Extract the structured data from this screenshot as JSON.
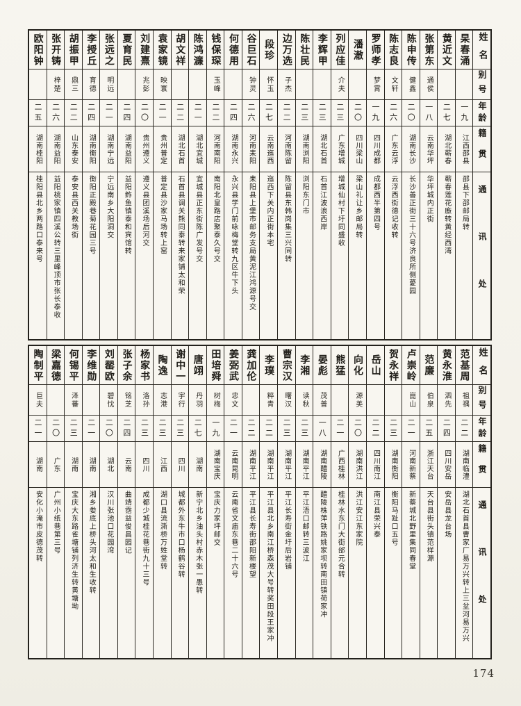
{
  "page": {
    "number": "174"
  },
  "headers": [
    "姓名",
    "别号",
    "年龄",
    "籍贯",
    "通讯处"
  ],
  "tables": {
    "top": {
      "entries": [
        {
          "name": "杲春涌",
          "alias": "",
          "age": "一九",
          "native": "江西邵县",
          "address": "邵县下邵邮局转"
        },
        {
          "name": "黄近文",
          "alias": "",
          "age": "二七",
          "native": "湖北蕲春",
          "address": "蕲春莲花廒转黄经西湾"
        },
        {
          "name": "张第东",
          "alias": "通侯",
          "age": "一八",
          "native": "云南华坪",
          "address": "华坪城内正街"
        },
        {
          "name": "陈申传",
          "alias": "健鑫",
          "age": "二〇",
          "native": "湖南长沙",
          "address": "长沙善正街三十六号济良所侧薆园"
        },
        {
          "name": "陈志良",
          "alias": "文轩",
          "age": "二六",
          "native": "广东云浮",
          "address": "云浮西街德记收转"
        },
        {
          "name": "罗师孝",
          "alias": "梦霄",
          "age": "一九",
          "native": "四川成都",
          "address": "成都西半第四号"
        },
        {
          "name": "潘澈",
          "alias": "",
          "age": "二〇",
          "native": "四川梁山",
          "address": "梁山礼让乡邮局转"
        },
        {
          "name": "列应佳",
          "alias": "介夫",
          "age": "二三",
          "native": "广东增城",
          "address": "增城仙村下圩同盛收"
        },
        {
          "name": "李辉甲",
          "alias": "",
          "age": "二三",
          "native": "湖北石首",
          "address": "石首江波浪西岸"
        },
        {
          "name": "陈壮民",
          "alias": "",
          "age": "二三",
          "native": "湖南浏阳",
          "address": "浏阳东门市"
        },
        {
          "name": "边万选",
          "alias": "子杰",
          "age": "二二",
          "native": "河南陈留",
          "address": "陈留县东韩岗集三兴同转"
        },
        {
          "name": "段珍",
          "alias": "怀玉",
          "age": "二七",
          "native": "云南迤西",
          "address": "迤西下关内正街本宅"
        },
        {
          "name": "谷巨石",
          "alias": "钟灵",
          "age": "二六",
          "native": "河南耒阳",
          "address": "耒阳县上堡市邮务支局黄泥江鸿源号交"
        },
        {
          "name": "何德用",
          "alias": "",
          "age": "二四",
          "native": "湖南永兴",
          "address": "永兴县学门前咏梅堂转九区牛下头"
        },
        {
          "name": "钱保琛",
          "alias": "玉峰",
          "age": "二二",
          "native": "河南南阳",
          "address": "南阳北皇路店聚泰久号交"
        },
        {
          "name": "陈鸿濂",
          "alias": "",
          "age": "二一",
          "native": "湖北宜城",
          "address": "宜城县正东街陈广发号交"
        },
        {
          "name": "胡文祥",
          "alias": "",
          "age": "二二",
          "native": "湖北石首",
          "address": "石首县调关熊同泰转来家铺太和荣"
        },
        {
          "name": "袁家镜",
          "alias": "映寰",
          "age": "二一",
          "native": "贵州普定",
          "address": "普定县沙家马场转上窑"
        },
        {
          "name": "刘建熹",
          "alias": "兆彭",
          "age": "二〇",
          "native": "贵州遵义",
          "address": "遵义县团溪场后河交"
        },
        {
          "name": "夏育民",
          "alias": "",
          "age": "二四",
          "native": "湖南益阳",
          "address": "益阳鲊鱼镇泰和宾馆转"
        },
        {
          "name": "张远之",
          "alias": "明远",
          "age": "二一",
          "native": "湖南宁远",
          "address": "宁远南乡大阳洞交"
        },
        {
          "name": "李授丘",
          "alias": "育德",
          "age": "二四",
          "native": "湖南衡阳",
          "address": "衡阳正殿巷菊花园三号"
        },
        {
          "name": "胡振甲",
          "alias": "鼎三",
          "age": "二二",
          "native": "山东泰安",
          "address": "泰安县西关教场街"
        },
        {
          "name": "张开铸",
          "alias": "梓楚",
          "age": "二六",
          "native": "湖南益阳",
          "address": "益阳桃家镇四溪公转三里峰顶市张长泰收"
        },
        {
          "name": "欧阳钟",
          "alias": "",
          "age": "二五",
          "native": "湖南桂阳",
          "address": "桂阳县北乡两路口泰来号"
        }
      ]
    },
    "bottom": {
      "entries": [
        {
          "name": "范基周",
          "alias": "祖禑",
          "age": "二二",
          "native": "湖南临澧",
          "address": "湖北石首县曹家厂易万兴转上三坌河易万兴"
        },
        {
          "name": "黄永淮",
          "alias": "泗先",
          "age": "二四",
          "native": "四川安岳",
          "address": "安岳县龙台场"
        },
        {
          "name": "范廉",
          "alias": "伯泉",
          "age": "二五",
          "native": "浙江天台",
          "address": "天台县街头镇范样源"
        },
        {
          "name": "卢崇岭",
          "alias": "崑山",
          "age": "二一",
          "native": "河南新蔡",
          "address": "新蔡城北野里集同春堂"
        },
        {
          "name": "贺永祥",
          "alias": "",
          "age": "二三",
          "native": "湖南衡阳",
          "address": "衡阳马趾口五号"
        },
        {
          "name": "岳山",
          "alias": "",
          "age": "二二",
          "native": "四川南江",
          "address": "南江县荣兴泰"
        },
        {
          "name": "向化",
          "alias": "源美",
          "age": "二〇",
          "native": "湖南洪江",
          "address": "洪江安江东家院"
        },
        {
          "name": "熊猛",
          "alias": "",
          "age": "二一",
          "native": "广西桂林",
          "address": "桂林水东门大街邰元合转"
        },
        {
          "name": "晏彪",
          "alias": "茂普",
          "age": "一八",
          "native": "湖南醴陵",
          "address": "醴陵株萍铁路姚家坝转南田镇荷家冲"
        },
        {
          "name": "李湘",
          "alias": "读秋",
          "age": "二三",
          "native": "湖南平江",
          "address": "平江浯口邮转三波江"
        },
        {
          "name": "曹宗汉",
          "alias": "曙汉",
          "age": "二三",
          "native": "湖南平江",
          "address": "平江长寿街金圩后岩铺"
        },
        {
          "name": "李璞",
          "alias": "粹青",
          "age": "二二",
          "native": "湖南平江",
          "address": "平江县北乡南江桥森茂大号转奖田段王家冲"
        },
        {
          "name": "龚加伦",
          "alias": "",
          "age": "二二",
          "native": "湖南平江",
          "address": "平江县长寿街邵阳新楼望"
        },
        {
          "name": "姜弼武",
          "alias": "忠文",
          "age": "二一",
          "native": "云南昆明",
          "address": "云南省文庙东巷二十六号"
        },
        {
          "name": "田培舜",
          "alias": "树梅",
          "age": "一九",
          "native": "湖南宝庆",
          "address": "宝庆力家坪邮交"
        },
        {
          "name": "唐翊",
          "alias": "丹羽",
          "age": "二七",
          "native": "湖南",
          "address": "新宁北乡油头村赤木张一愚转"
        },
        {
          "name": "谢中一",
          "alias": "宇行",
          "age": "二三",
          "native": "四川",
          "address": "城都外东牛市口杨鹤谷转"
        },
        {
          "name": "陶逸",
          "alias": "志港",
          "age": "二三",
          "native": "江西",
          "address": "湖口县流澌桥万姓堂转"
        },
        {
          "name": "杨家书",
          "alias": "洛孙",
          "age": "二三",
          "native": "四川",
          "address": "成都少城桂花巷街九十三号"
        },
        {
          "name": "张子余",
          "alias": "铭芝",
          "age": "二四",
          "native": "云南",
          "address": "曲靖霑益俊昌园记"
        },
        {
          "name": "刘罂欧",
          "alias": "碧忱",
          "age": "二〇",
          "native": "湖北",
          "address": "汉川张池口花园湾"
        },
        {
          "name": "李维勋",
          "alias": "",
          "age": "二一",
          "native": "湖南",
          "address": "湘乡娄底上桥头河太和生收转"
        },
        {
          "name": "何锡平",
          "alias": "泽蕃",
          "age": "二三",
          "native": "湖南",
          "address": "宝庆大东路雀塘铺列济生转黄塘坳"
        },
        {
          "name": "梁嘉德",
          "alias": "",
          "age": "二〇",
          "native": "广东",
          "address": "广州小纸巷第三号"
        },
        {
          "name": "陶制平",
          "alias": "巨夫",
          "age": "二一",
          "native": "湖南",
          "address": "安化小淹市皮德茂转"
        }
      ]
    }
  }
}
